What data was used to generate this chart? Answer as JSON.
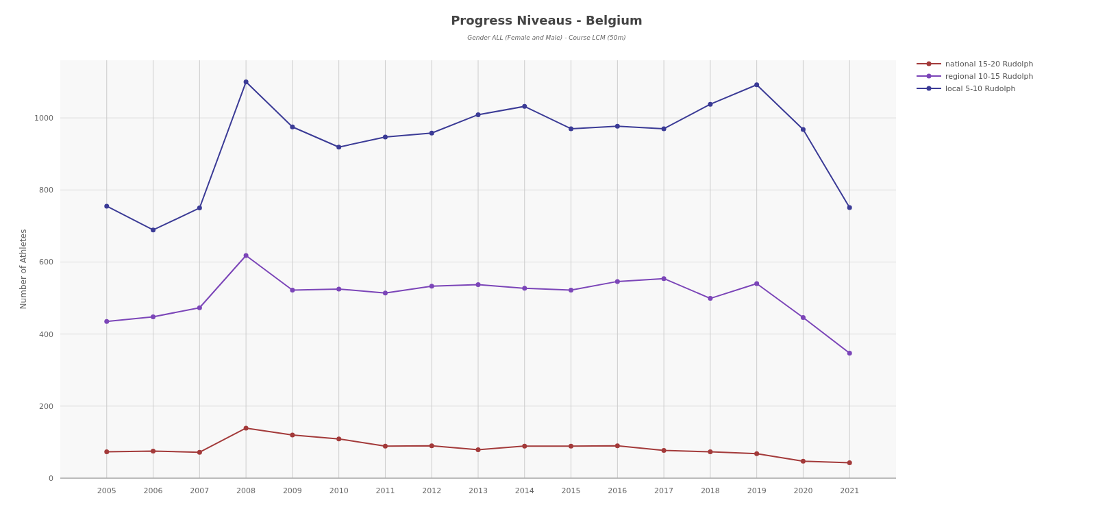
{
  "chart_data": {
    "type": "line",
    "title": "Progress Niveaus - Belgium",
    "subtitle": "Gender ALL (Female and Male) - Course LCM (50m)",
    "ylabel": "Number of Athletes",
    "categories": [
      "2005",
      "2006",
      "2007",
      "2008",
      "2009",
      "2010",
      "2011",
      "2012",
      "2013",
      "2014",
      "2015",
      "2016",
      "2017",
      "2018",
      "2019",
      "2020",
      "2021"
    ],
    "series": [
      {
        "name": "national 15-20 Rudolph",
        "color": "#a33a3a",
        "values": [
          73,
          75,
          72,
          139,
          120,
          109,
          89,
          90,
          79,
          89,
          89,
          90,
          77,
          73,
          68,
          47,
          43
        ]
      },
      {
        "name": "regional 10-15 Rudolph",
        "color": "#7b45b8",
        "values": [
          435,
          448,
          473,
          618,
          522,
          525,
          514,
          533,
          537,
          527,
          522,
          546,
          554,
          499,
          540,
          446,
          347
        ]
      },
      {
        "name": "local 5-10 Rudolph",
        "color": "#3b3b96",
        "values": [
          755,
          689,
          750,
          1100,
          975,
          919,
          947,
          958,
          1009,
          1032,
          970,
          977,
          970,
          1038,
          1092,
          968,
          751
        ]
      }
    ],
    "ylim": [
      0,
      1160
    ],
    "yticks": [
      0,
      200,
      400,
      600,
      800,
      1000
    ],
    "grid": true,
    "legend": "top right",
    "marker": "circle",
    "line_style": "solid"
  }
}
